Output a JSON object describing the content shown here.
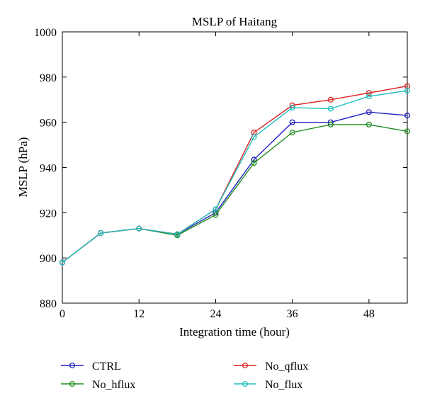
{
  "chart_data": {
    "type": "line",
    "title": "MSLP of Haitang",
    "xlabel": "Integration time (hour)",
    "ylabel": "MSLP (hPa)",
    "xlim": [
      0,
      54
    ],
    "ylim": [
      880,
      1000
    ],
    "xticks": [
      0,
      12,
      24,
      36,
      48
    ],
    "yticks": [
      880,
      900,
      920,
      940,
      960,
      980,
      1000
    ],
    "grid": false,
    "legend_position": "bottom",
    "x": [
      0,
      6,
      12,
      18,
      24,
      30,
      36,
      42,
      48,
      54
    ],
    "series": [
      {
        "name": "CTRL",
        "color": "#1f1fbf",
        "values": [
          898,
          911,
          913,
          910.5,
          920,
          943.5,
          960,
          960,
          964.5,
          963
        ]
      },
      {
        "name": "No_hflux",
        "color": "#1f8c1f",
        "values": [
          898,
          911,
          913,
          910,
          919,
          942,
          955.5,
          959,
          959,
          956
        ]
      },
      {
        "name": "No_qflux",
        "color": "#d92020",
        "values": [
          898,
          911,
          913,
          910.5,
          921.5,
          955.5,
          967.5,
          970,
          973,
          976
        ]
      },
      {
        "name": "No_flux",
        "color": "#20bfbf",
        "values": [
          898,
          911,
          913,
          910.5,
          921.5,
          953.5,
          966.5,
          966,
          971.5,
          974
        ]
      }
    ]
  }
}
